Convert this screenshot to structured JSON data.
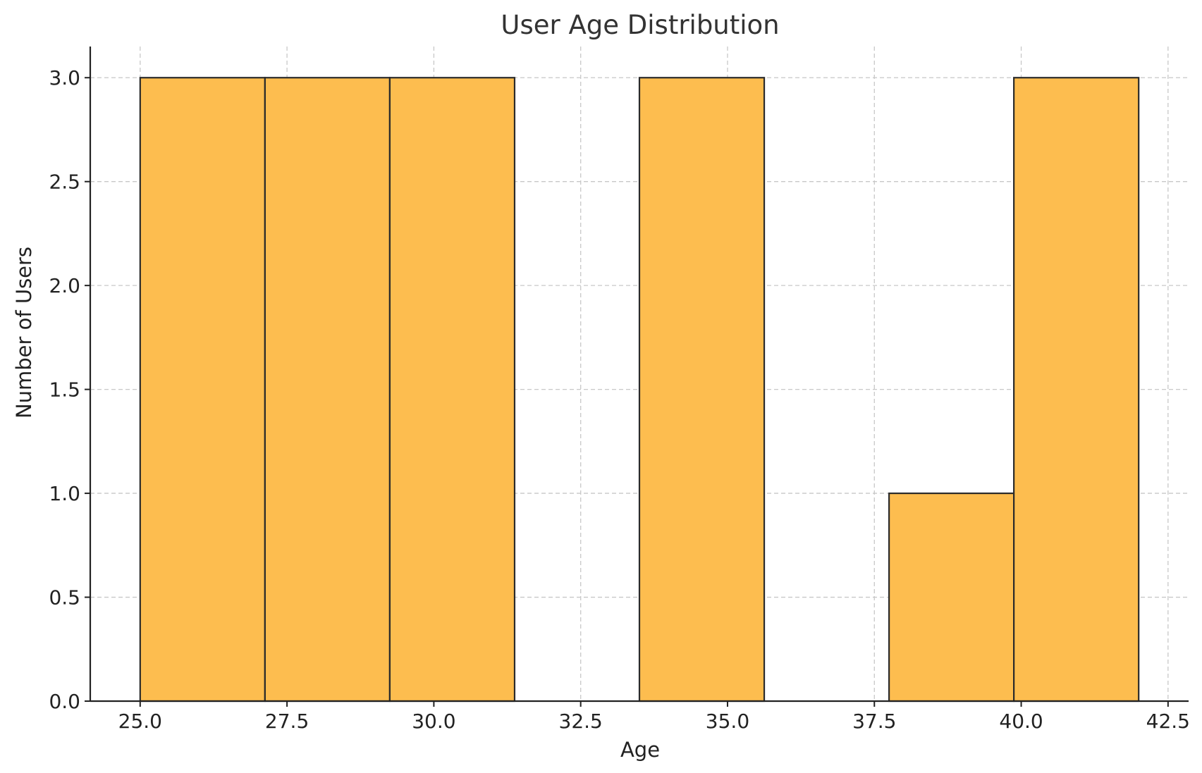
{
  "chart_data": {
    "type": "bar",
    "title": "User Age Distribution",
    "xlabel": "Age",
    "ylabel": "Number of Users",
    "bins": [
      {
        "x0": 25.0,
        "x1": 27.125,
        "count": 3
      },
      {
        "x0": 27.125,
        "x1": 29.25,
        "count": 3
      },
      {
        "x0": 29.25,
        "x1": 31.375,
        "count": 3
      },
      {
        "x0": 31.375,
        "x1": 33.5,
        "count": 0
      },
      {
        "x0": 33.5,
        "x1": 35.625,
        "count": 3
      },
      {
        "x0": 35.625,
        "x1": 37.75,
        "count": 0
      },
      {
        "x0": 37.75,
        "x1": 39.875,
        "count": 1
      },
      {
        "x0": 39.875,
        "x1": 42.0,
        "count": 3
      }
    ],
    "xlim": [
      24.15,
      42.85
    ],
    "ylim": [
      0,
      3.15
    ],
    "xticks": [
      25.0,
      27.5,
      30.0,
      32.5,
      35.0,
      37.5,
      40.0,
      42.5
    ],
    "xtick_labels": [
      "25.0",
      "27.5",
      "30.0",
      "32.5",
      "35.0",
      "37.5",
      "40.0",
      "42.5"
    ],
    "yticks": [
      0.0,
      0.5,
      1.0,
      1.5,
      2.0,
      2.5,
      3.0
    ],
    "ytick_labels": [
      "0.0",
      "0.5",
      "1.0",
      "1.5",
      "2.0",
      "2.5",
      "3.0"
    ],
    "grid": true,
    "bar_color": "#FDBD4F",
    "edge_color": "#2b2b2b"
  }
}
